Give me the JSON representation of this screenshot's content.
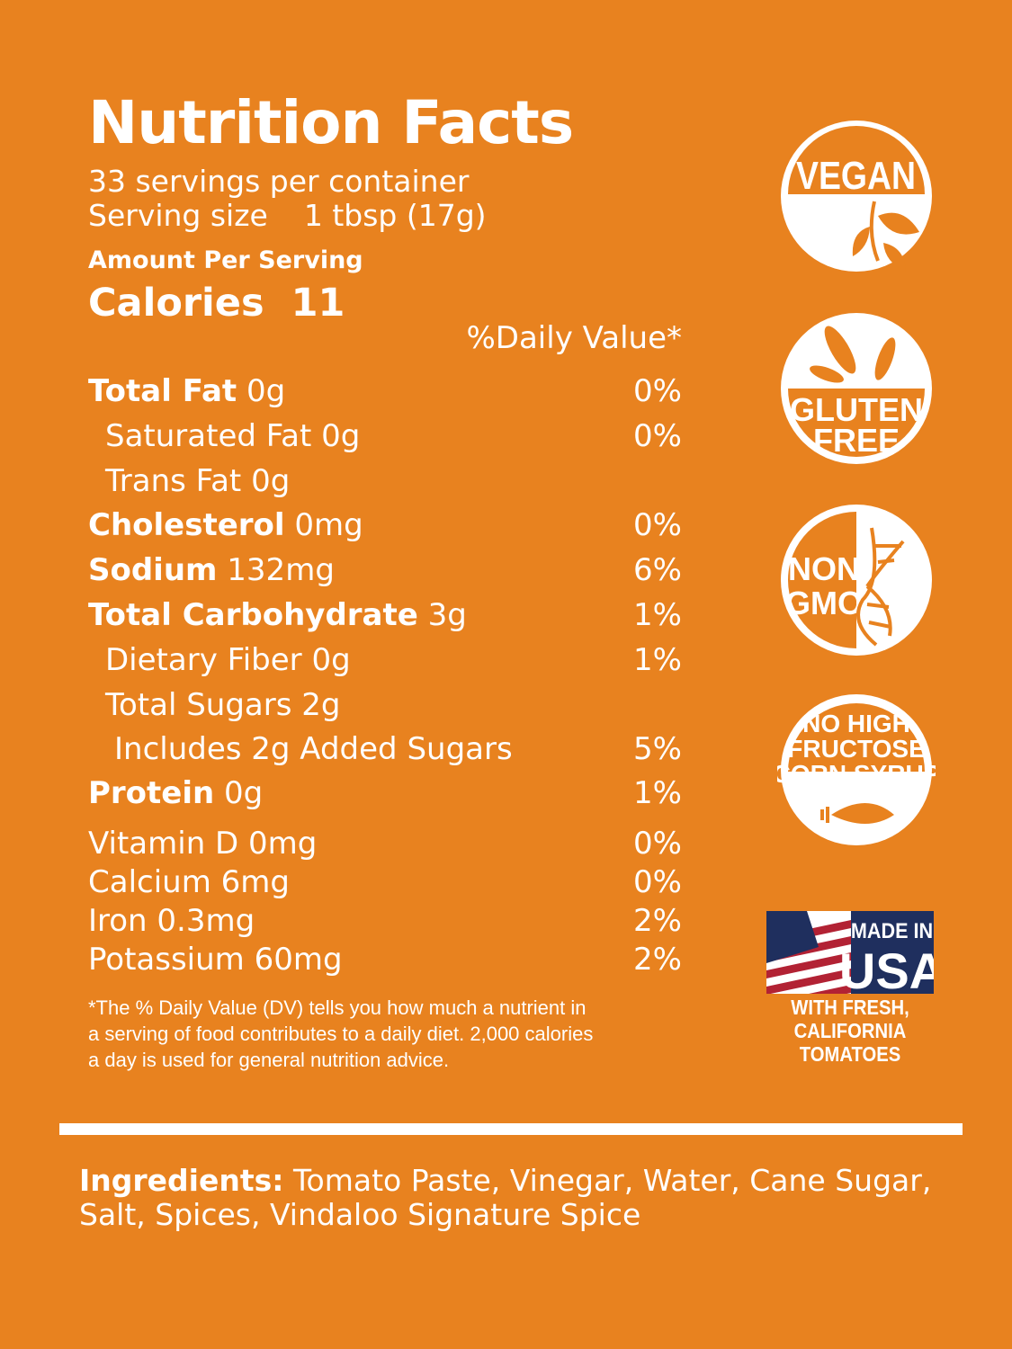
{
  "title": "Nutrition Facts",
  "servings_per_container": "33 servings per container",
  "serving_size_label": "Serving size",
  "serving_size_value": "1 tbsp (17g)",
  "amount_per_serving": "Amount Per Serving",
  "calories_label": "Calories",
  "calories_value": "11",
  "daily_value_header": "%Daily Value*",
  "nutrients": [
    {
      "name": "Total Fat",
      "amount": "0g",
      "dv": "0%",
      "bold": true,
      "indent": 0
    },
    {
      "name": "Saturated Fat",
      "amount": "0g",
      "dv": "0%",
      "bold": false,
      "indent": 1
    },
    {
      "name": "Trans Fat",
      "amount": "0g",
      "dv": "",
      "bold": false,
      "indent": 1
    },
    {
      "name": "Cholesterol",
      "amount": "0mg",
      "dv": "0%",
      "bold": true,
      "indent": 0
    },
    {
      "name": "Sodium",
      "amount": "132mg",
      "dv": "6%",
      "bold": true,
      "indent": 0
    },
    {
      "name": "Total Carbohydrate",
      "amount": "3g",
      "dv": "1%",
      "bold": true,
      "indent": 0
    },
    {
      "name": "Dietary Fiber",
      "amount": "0g",
      "dv": "1%",
      "bold": false,
      "indent": 1
    },
    {
      "name": "Total Sugars",
      "amount": "2g",
      "dv": "",
      "bold": false,
      "indent": 1
    },
    {
      "name": "Includes 2g Added Sugars",
      "amount": "",
      "dv": "5%",
      "bold": false,
      "indent": 2
    },
    {
      "name": "Protein",
      "amount": "0g",
      "dv": "1%",
      "bold": true,
      "indent": 0
    }
  ],
  "vitamins": [
    {
      "name": "Vitamin D",
      "amount": "0mg",
      "dv": "0%"
    },
    {
      "name": "Calcium",
      "amount": "6mg",
      "dv": "0%"
    },
    {
      "name": "Iron",
      "amount": "0.3mg",
      "dv": "2%"
    },
    {
      "name": "Potassium",
      "amount": "60mg",
      "dv": "2%"
    }
  ],
  "footnote": [
    "*The % Daily Value (DV) tells you how much a nutrient in",
    "a serving of food contributes to a daily diet. 2,000 calories",
    "a day is used for general nutrition advice."
  ],
  "ingredients_label": "Ingredients:",
  "ingredients_line1": "Tomato Paste, Vinegar, Water, Cane Sugar,",
  "ingredients_line2": "Salt, Spices, Vindaloo Signature Spice",
  "badges": {
    "vegan": "VEGAN",
    "gluten_free": [
      "GLUTEN",
      "FREE"
    ],
    "non_gmo": [
      "NON",
      "GMO"
    ],
    "no_hfcs": [
      "NO HIGH",
      "FRUCTOSE",
      "CORN SYRUP"
    ],
    "made_in": "MADE IN",
    "usa": "USA",
    "usa_caption": [
      "WITH FRESH,",
      "CALIFORNIA TOMATOES"
    ]
  },
  "colors": {
    "background": "#E8821F",
    "text": "#FFFFFF",
    "flag_red": "#B22234",
    "flag_blue": "#1F2F5E"
  }
}
